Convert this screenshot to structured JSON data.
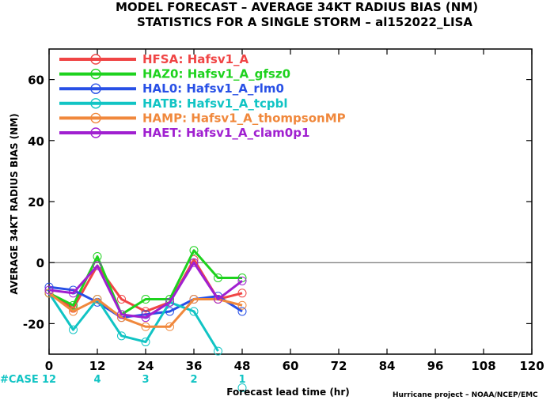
{
  "chart_data": {
    "type": "line",
    "title_line1": "MODEL FORECAST – AVERAGE 34KT RADIUS BIAS (NM)",
    "title_line2": "STATISTICS FOR A SINGLE STORM – al152022_LISA",
    "xlabel": "Forecast lead time (hr)",
    "ylabel": "AVERAGE 34KT RADIUS BIAS (NM)",
    "credit": "Hurricane project – NOAA/NCEP/EMC",
    "xlim": [
      0,
      120
    ],
    "ylim": [
      -30,
      70
    ],
    "x_ticks": [
      0,
      12,
      24,
      36,
      48,
      60,
      72,
      84,
      96,
      108,
      120
    ],
    "y_ticks": [
      -20,
      0,
      20,
      40,
      60
    ],
    "zero_line": true,
    "grid": false,
    "legend_position": "top-left",
    "case_label": "#CASE",
    "case_counts": [
      {
        "x": 0,
        "n": "12"
      },
      {
        "x": 12,
        "n": "4"
      },
      {
        "x": 24,
        "n": "3"
      },
      {
        "x": 36,
        "n": "2"
      },
      {
        "x": 48,
        "n": "1"
      }
    ],
    "x": [
      0,
      6,
      12,
      18,
      24,
      30,
      36,
      42,
      48
    ],
    "series": [
      {
        "name": "HFSA: Hafsv1_A",
        "color": "#f04545",
        "values": [
          -10,
          -15,
          -1,
          -12,
          -16,
          -13,
          1,
          -12,
          -10
        ]
      },
      {
        "name": "HAZ0: Hafsv1_A_gfsz0",
        "color": "#1ed21e",
        "values": [
          -10,
          -14,
          2,
          -17,
          -12,
          -12,
          4,
          -5,
          -5
        ]
      },
      {
        "name": "HAL0: Hafsv1_A_rlm0",
        "color": "#2850e6",
        "values": [
          -8,
          -9,
          -13,
          -18,
          -17,
          -16,
          -12,
          -11,
          -16
        ]
      },
      {
        "name": "HATB: Hafsv1_A_tcpbl",
        "color": "#11c4c4",
        "values": [
          -10,
          -22,
          -12,
          -24,
          -26,
          -13,
          -16,
          -29,
          null
        ]
      },
      {
        "name": "HAMP: Hafsv1_A_thompsonMP",
        "color": "#f0883c",
        "values": [
          -10,
          -16,
          -12,
          -18,
          -21,
          -21,
          -12,
          -12,
          -14
        ]
      },
      {
        "name": "HAET: Hafsv1_A_clam0p1",
        "color": "#a020d0",
        "values": [
          -9,
          -10,
          -1,
          -17,
          -18,
          -13,
          0,
          -12,
          -6
        ]
      }
    ],
    "extra_points": [
      {
        "series": "HATB: Hafsv1_A_tcpbl",
        "x": 48,
        "y": -41
      }
    ]
  }
}
